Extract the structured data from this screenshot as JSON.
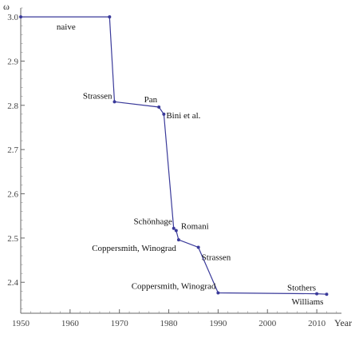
{
  "chart_data": {
    "type": "line",
    "title": "",
    "xlabel": "Year",
    "ylabel": "ω",
    "xlim": [
      1950,
      2015
    ],
    "ylim": [
      2.33,
      3.02
    ],
    "xticks": [
      "1950",
      "1960",
      "1970",
      "1980",
      "1990",
      "2000",
      "2010"
    ],
    "yticks": [
      "2.4",
      "2.5",
      "2.6",
      "2.7",
      "2.8",
      "2.9",
      "3.0"
    ],
    "series": [
      {
        "x": [
          1950,
          1968,
          1969,
          1978,
          1979,
          1981,
          1981.5,
          1982,
          1986,
          1990,
          2010,
          2012
        ],
        "y": [
          3.0,
          3.0,
          2.808,
          2.796,
          2.78,
          2.522,
          2.517,
          2.496,
          2.479,
          2.376,
          2.374,
          2.373
        ]
      }
    ],
    "annotations": [
      {
        "text": "naive",
        "x": 1960,
        "y": 3.0
      },
      {
        "text": "Strassen",
        "x": 1969,
        "y": 2.808
      },
      {
        "text": "Pan",
        "x": 1978,
        "y": 2.796
      },
      {
        "text": "Bini et al.",
        "x": 1979,
        "y": 2.78
      },
      {
        "text": "Schönhage",
        "x": 1981,
        "y": 2.522
      },
      {
        "text": "Romani",
        "x": 1981.5,
        "y": 2.517
      },
      {
        "text": "Coppersmith, Winograd",
        "x": 1982,
        "y": 2.496
      },
      {
        "text": "Strassen",
        "x": 1986,
        "y": 2.479
      },
      {
        "text": "Coppersmith, Winograd",
        "x": 1990,
        "y": 2.376
      },
      {
        "text": "Stothers",
        "x": 2010,
        "y": 2.374
      },
      {
        "text": "Williams",
        "x": 2012,
        "y": 2.373
      }
    ],
    "grid": false,
    "legend": "none"
  },
  "colors": {
    "series": "#3a3a9a",
    "axis": "#666666"
  }
}
